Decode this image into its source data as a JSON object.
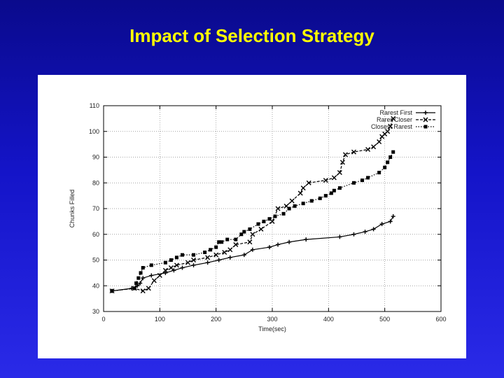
{
  "slide": {
    "title": "Impact of Selection Strategy"
  },
  "chart_data": {
    "type": "line",
    "xlabel": "Time(sec)",
    "ylabel": "Chunks Filled",
    "xlim": [
      0,
      600
    ],
    "ylim": [
      30,
      110
    ],
    "xticks": [
      0,
      100,
      200,
      300,
      400,
      500,
      600
    ],
    "yticks": [
      30,
      40,
      50,
      60,
      70,
      80,
      90,
      100,
      110
    ],
    "grid": true,
    "legend_position": "top-right",
    "series": [
      {
        "name": "Rarest First",
        "marker": "plus",
        "dash": "solid",
        "x": [
          15,
          50,
          60,
          65,
          70,
          85,
          110,
          125,
          140,
          160,
          185,
          205,
          225,
          250,
          265,
          295,
          310,
          330,
          360,
          420,
          445,
          465,
          480,
          495,
          510,
          515
        ],
        "y": [
          38,
          39,
          40,
          41,
          43,
          44,
          45,
          46,
          47,
          48,
          49,
          50,
          51,
          52,
          54,
          55,
          56,
          57,
          58,
          59,
          60,
          61,
          62,
          64,
          65,
          67
        ]
      },
      {
        "name": "Rarer Closer",
        "marker": "x",
        "dash": "dashed",
        "x": [
          15,
          55,
          70,
          80,
          90,
          100,
          110,
          120,
          130,
          150,
          160,
          185,
          200,
          215,
          225,
          235,
          260,
          265,
          280,
          300,
          310,
          325,
          335,
          350,
          355,
          365,
          395,
          410,
          420,
          425,
          430,
          445,
          470,
          480,
          490,
          495,
          500,
          505,
          510,
          515
        ],
        "y": [
          38,
          39,
          38,
          39,
          42,
          44,
          46,
          47,
          48,
          49,
          50,
          51,
          52,
          53,
          54,
          56,
          57,
          60,
          62,
          65,
          70,
          71,
          73,
          76,
          78,
          80,
          81,
          82,
          84,
          88,
          91,
          92,
          93,
          94,
          96,
          98,
          99,
          100,
          102,
          105
        ]
      },
      {
        "name": "Closest Rarest",
        "marker": "square",
        "dash": "dotted",
        "x": [
          15,
          55,
          58,
          62,
          66,
          70,
          85,
          110,
          120,
          130,
          140,
          160,
          180,
          190,
          200,
          205,
          210,
          220,
          235,
          245,
          250,
          260,
          275,
          285,
          295,
          305,
          320,
          330,
          340,
          355,
          370,
          385,
          395,
          405,
          410,
          420,
          445,
          460,
          470,
          490,
          500,
          505,
          510,
          515
        ],
        "y": [
          38,
          39,
          41,
          43,
          45,
          47,
          48,
          49,
          50,
          51,
          52,
          52,
          53,
          54,
          55,
          57,
          57,
          58,
          58,
          60,
          61,
          62,
          64,
          65,
          66,
          67,
          68,
          70,
          71,
          72,
          73,
          74,
          75,
          76,
          77,
          78,
          80,
          81,
          82,
          84,
          86,
          88,
          90,
          92
        ]
      }
    ]
  }
}
